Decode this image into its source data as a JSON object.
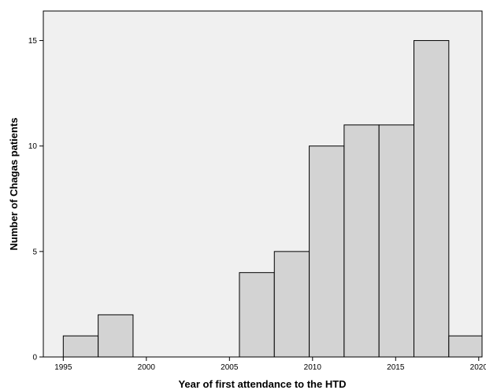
{
  "chart_data": {
    "type": "bar",
    "histogram": true,
    "title": "",
    "xlabel": "Year of first attendance to the HTD",
    "ylabel": "Number of Chagas patients",
    "xlim": [
      1993.8,
      2020.2
    ],
    "ylim": [
      0,
      16.4
    ],
    "x_ticks": [
      1995,
      2000,
      2005,
      2010,
      2015,
      2020
    ],
    "x_tick_labels": [
      "1995",
      "2000",
      "2005",
      "2010",
      "2015",
      "2020"
    ],
    "y_ticks": [
      0,
      5,
      10,
      15
    ],
    "y_tick_labels": [
      "0",
      "5",
      "10",
      "15"
    ],
    "bins": [
      {
        "x0": 1995.0,
        "x1": 1997.1,
        "count": 1
      },
      {
        "x0": 1997.1,
        "x1": 1999.2,
        "count": 2
      },
      {
        "x0": 1999.2,
        "x1": 2001.3,
        "count": 0
      },
      {
        "x0": 2001.3,
        "x1": 2003.4,
        "count": 0
      },
      {
        "x0": 2003.4,
        "x1": 2005.6,
        "count": 0
      },
      {
        "x0": 2005.6,
        "x1": 2007.7,
        "count": 4
      },
      {
        "x0": 2007.7,
        "x1": 2009.8,
        "count": 5
      },
      {
        "x0": 2009.8,
        "x1": 2011.9,
        "count": 10
      },
      {
        "x0": 2011.9,
        "x1": 2014.0,
        "count": 11
      },
      {
        "x0": 2014.0,
        "x1": 2016.1,
        "count": 11
      },
      {
        "x0": 2016.1,
        "x1": 2018.2,
        "count": 15
      },
      {
        "x0": 2018.2,
        "x1": 2020.3,
        "count": 1
      }
    ],
    "grid": false,
    "legend": "none",
    "colors": {
      "plot_background": "#f0f0f0",
      "bar_fill": "#d3d3d3",
      "bar_edge": "#000000"
    }
  }
}
